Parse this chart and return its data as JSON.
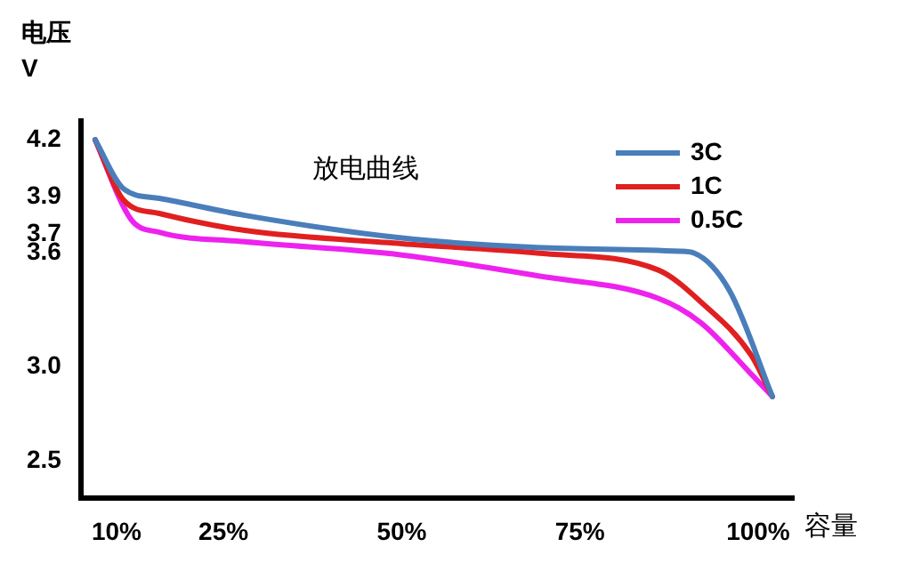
{
  "chart_data": {
    "type": "line",
    "title": "放电曲线",
    "ylabel": "电压\nV",
    "xlabel": "容量",
    "xlim": [
      5,
      105
    ],
    "xticks": [
      {
        "value": 10,
        "label": "10%"
      },
      {
        "value": 25,
        "label": "25%"
      },
      {
        "value": 50,
        "label": "50%"
      },
      {
        "value": 75,
        "label": "75%"
      },
      {
        "value": 100,
        "label": "100%"
      }
    ],
    "ylim": [
      2.3,
      4.3
    ],
    "yticks": [
      4.2,
      3.9,
      3.7,
      3.6,
      {
        "value": 3,
        "label": "3.0"
      },
      2.5
    ],
    "grid": false,
    "legend": "top right",
    "marker": "none",
    "line_style": "solid",
    "series": [
      {
        "name": "3C",
        "color": "#4a7ebb",
        "x": [
          7,
          11,
          16,
          28,
          50,
          69,
          89,
          91,
          96,
          102
        ],
        "values": [
          4.2,
          3.94,
          3.89,
          3.8,
          3.68,
          3.63,
          3.61,
          3.6,
          3.4,
          2.84
        ]
      },
      {
        "name": "1C",
        "color": "#e02020",
        "x": [
          7,
          11,
          16,
          28,
          50,
          69,
          86,
          92,
          99,
          102
        ],
        "values": [
          4.2,
          3.88,
          3.81,
          3.72,
          3.65,
          3.6,
          3.51,
          3.34,
          3.06,
          2.84
        ]
      },
      {
        "name": "0.5C",
        "color": "#ee22ee",
        "x": [
          7,
          12,
          16,
          28,
          50,
          69,
          86,
          92,
          99,
          102
        ],
        "values": [
          4.2,
          3.78,
          3.71,
          3.66,
          3.59,
          3.48,
          3.36,
          3.23,
          2.96,
          2.84
        ]
      }
    ]
  }
}
